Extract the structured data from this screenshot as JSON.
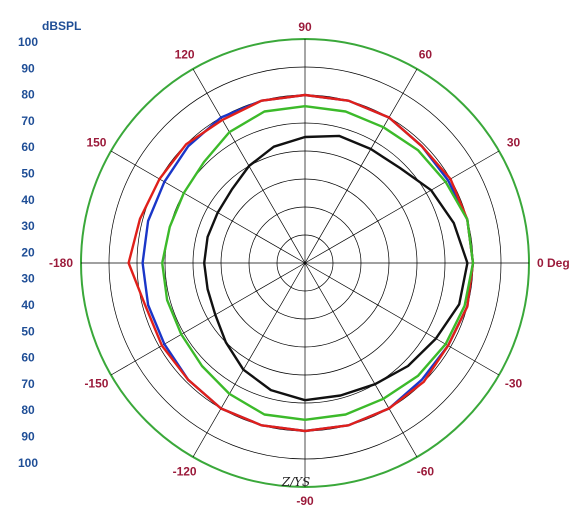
{
  "chart_data": {
    "type": "line",
    "subtype": "polar",
    "unit_label": "dBSPL",
    "radial_range": [
      20,
      100
    ],
    "radial_tick_labels": [
      "100",
      "90",
      "80",
      "70",
      "60",
      "50",
      "40",
      "30",
      "20",
      "30",
      "40",
      "50",
      "60",
      "70",
      "80",
      "90",
      "100"
    ],
    "angle_ticks": [
      {
        "angle": 0,
        "label": "0 Deg"
      },
      {
        "angle": 30,
        "label": "30"
      },
      {
        "angle": 60,
        "label": "60"
      },
      {
        "angle": 90,
        "label": "90"
      },
      {
        "angle": 120,
        "label": "120"
      },
      {
        "angle": 150,
        "label": "150"
      },
      {
        "angle": 180,
        "label": "-180"
      },
      {
        "angle": -150,
        "label": "-150"
      },
      {
        "angle": -120,
        "label": "-120"
      },
      {
        "angle": -90,
        "label": "-90"
      },
      {
        "angle": -60,
        "label": "-60"
      },
      {
        "angle": -30,
        "label": "-30"
      }
    ],
    "annotation": "Z/YS",
    "grid": true,
    "series": [
      {
        "color": "#1a36c8",
        "angles": [
          0,
          15,
          30,
          45,
          60,
          75,
          90,
          105,
          120,
          135,
          150,
          165,
          180,
          195,
          210,
          225,
          240,
          255,
          270,
          285,
          300,
          315,
          330,
          345
        ],
        "values": [
          80,
          80,
          79,
          79,
          80,
          80,
          80,
          80,
          80,
          79,
          78,
          78,
          78,
          78,
          78,
          79,
          80,
          80,
          80,
          80,
          80,
          79,
          79,
          80
        ]
      },
      {
        "color": "#e0201a",
        "angles": [
          0,
          15,
          30,
          45,
          60,
          75,
          90,
          105,
          120,
          135,
          150,
          165,
          180,
          195,
          210,
          225,
          240,
          255,
          270,
          285,
          300,
          315,
          330,
          345
        ],
        "values": [
          80,
          80,
          80,
          79,
          80,
          80,
          80,
          80,
          79,
          80,
          80,
          81,
          83,
          79,
          79,
          79,
          80,
          80,
          80,
          80,
          80,
          80,
          79,
          80
        ]
      },
      {
        "color": "#3cba2a",
        "angles": [
          0,
          15,
          30,
          45,
          60,
          75,
          90,
          105,
          120,
          135,
          150,
          165,
          180,
          195,
          210,
          225,
          240,
          255,
          270,
          285,
          300,
          315,
          330,
          345
        ],
        "values": [
          80,
          80,
          78,
          77,
          76,
          76,
          76,
          76,
          74,
          71,
          70,
          70,
          71,
          71,
          71,
          72,
          74,
          76,
          76,
          76,
          76,
          77,
          78,
          79
        ]
      },
      {
        "color": "#111111",
        "angles": [
          0,
          15,
          30,
          45,
          60,
          75,
          90,
          105,
          120,
          135,
          150,
          165,
          180,
          195,
          210,
          225,
          240,
          255,
          270,
          285,
          300,
          315,
          330,
          345
        ],
        "values": [
          78,
          75,
          72,
          68,
          67,
          67,
          65,
          63,
          60,
          57,
          56,
          56,
          56,
          56,
          57,
          60,
          64,
          67,
          69,
          69,
          70,
          72,
          74,
          77
        ]
      }
    ]
  }
}
